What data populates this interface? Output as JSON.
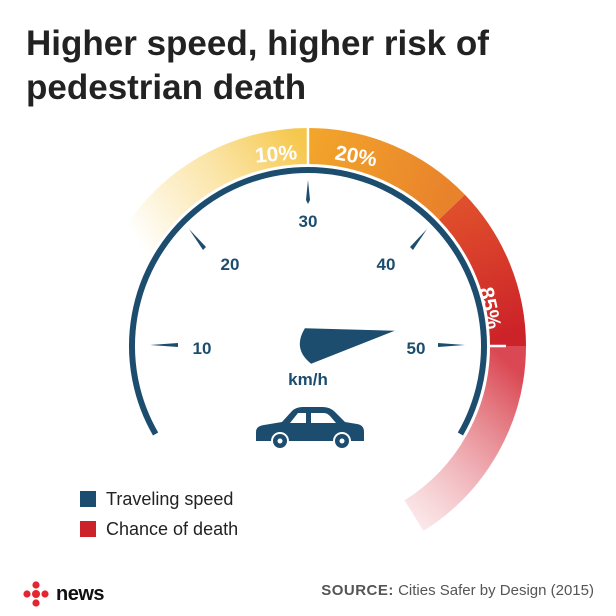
{
  "title": {
    "line1": "Higher speed, higher risk of",
    "line2": "pedestrian death"
  },
  "gauge": {
    "unit": "km/h",
    "needle_value": 50,
    "speed_labels": [
      "10",
      "20",
      "30",
      "40",
      "50"
    ],
    "risk_labels": {
      "r30": "10%",
      "r40": "20%",
      "r50": "85%"
    },
    "icon": "car-icon"
  },
  "legend": {
    "speed": "Traveling speed",
    "death": "Chance of death"
  },
  "colors": {
    "speed": "#1d4d6e",
    "death": "#cc2229",
    "orange": "#eb9420",
    "yellow": "#f6c74d",
    "text": "#222222"
  },
  "footer": {
    "logo_text": "news",
    "source_label": "SOURCE:",
    "source_text": "Cities Safer by Design (2015)"
  }
}
